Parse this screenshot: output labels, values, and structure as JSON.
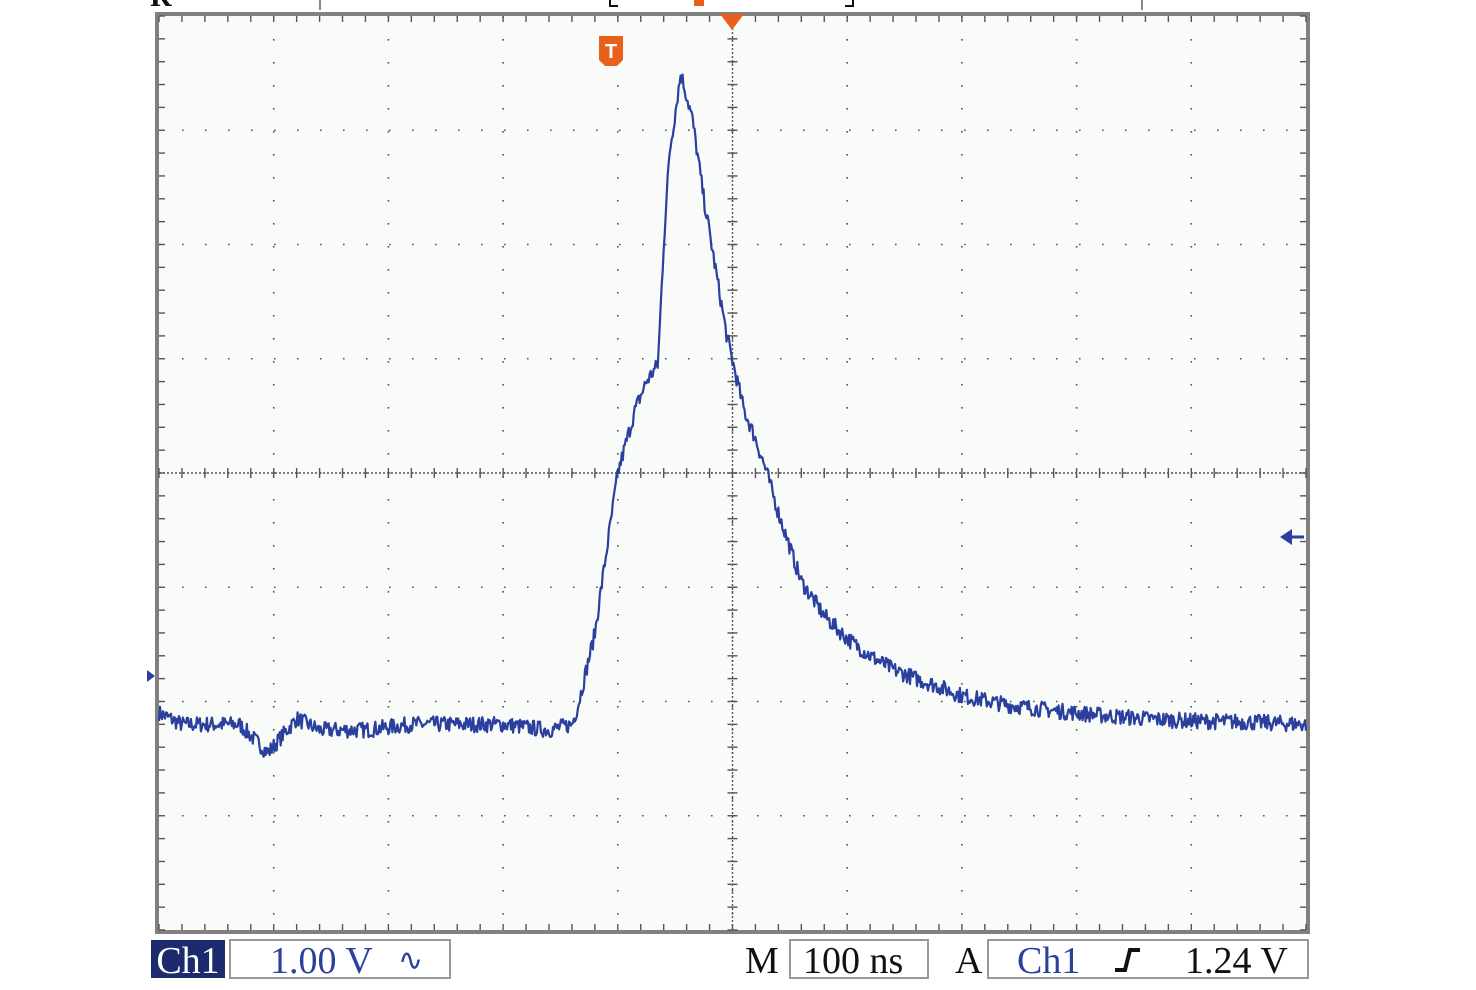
{
  "colors": {
    "trace": "#2a3f9e",
    "marker": "#e8601c",
    "frame": "#808080",
    "grid": "#555555",
    "background": "#f8fbf7",
    "text": "#111111",
    "channel_badge_bg": "#1c2a6e",
    "channel_badge_fg": "#ffffff"
  },
  "header": {
    "top_left_text": "R",
    "trigger_marker_label": "T"
  },
  "markers": {
    "trigger_position_icon": "T-flag-icon",
    "time_reference_icon": "orange-down-triangle-icon",
    "ground_level_icon": "small-right-arrow-icon",
    "trigger_level_icon": "blue-left-arrow-icon"
  },
  "status_bar": {
    "channel_label": "Ch1",
    "volts_per_div": "1.00 V",
    "coupling_symbol": "∿",
    "timebase_prefix": "M",
    "time_per_div": "100 ns",
    "trigger_mode": "A",
    "trigger_source": "Ch1",
    "trigger_slope_icon": "rising-edge-icon",
    "trigger_level": "1.24 V"
  },
  "chart_data": {
    "type": "line",
    "title": "",
    "xlabel": "",
    "ylabel": "",
    "x_units": "ns",
    "y_units": "V",
    "x_per_div": 100,
    "y_per_div": 1.0,
    "divisions": {
      "x": 10,
      "y": 8
    },
    "xlim": [
      -500,
      500
    ],
    "ylim": [
      -4,
      4
    ],
    "grid": true,
    "trigger_level_V": 1.24,
    "series": [
      {
        "name": "Ch1",
        "x": [
          -500,
          -480,
          -430,
          -405,
          -380,
          -360,
          -320,
          -280,
          -240,
          -200,
          -160,
          -140,
          -135,
          -120,
          -100,
          -85,
          -75,
          -65,
          -60,
          -55,
          -45,
          -35,
          -25,
          -15,
          -5,
          10,
          20,
          30,
          40,
          50,
          60,
          80,
          100,
          120,
          140,
          160,
          180,
          200,
          240,
          280,
          320,
          360,
          400,
          450,
          500
        ],
        "y": [
          -2.1,
          -2.2,
          -2.2,
          -2.45,
          -2.15,
          -2.25,
          -2.25,
          -2.2,
          -2.2,
          -2.2,
          -2.25,
          -2.2,
          -2.05,
          -1.4,
          0.0,
          0.55,
          0.8,
          0.95,
          2.0,
          2.8,
          3.5,
          3.1,
          2.4,
          1.8,
          1.2,
          0.55,
          0.3,
          0.0,
          -0.35,
          -0.65,
          -0.95,
          -1.25,
          -1.45,
          -1.6,
          -1.72,
          -1.8,
          -1.87,
          -1.95,
          -2.03,
          -2.08,
          -2.12,
          -2.15,
          -2.17,
          -2.18,
          -2.2
        ]
      }
    ]
  }
}
